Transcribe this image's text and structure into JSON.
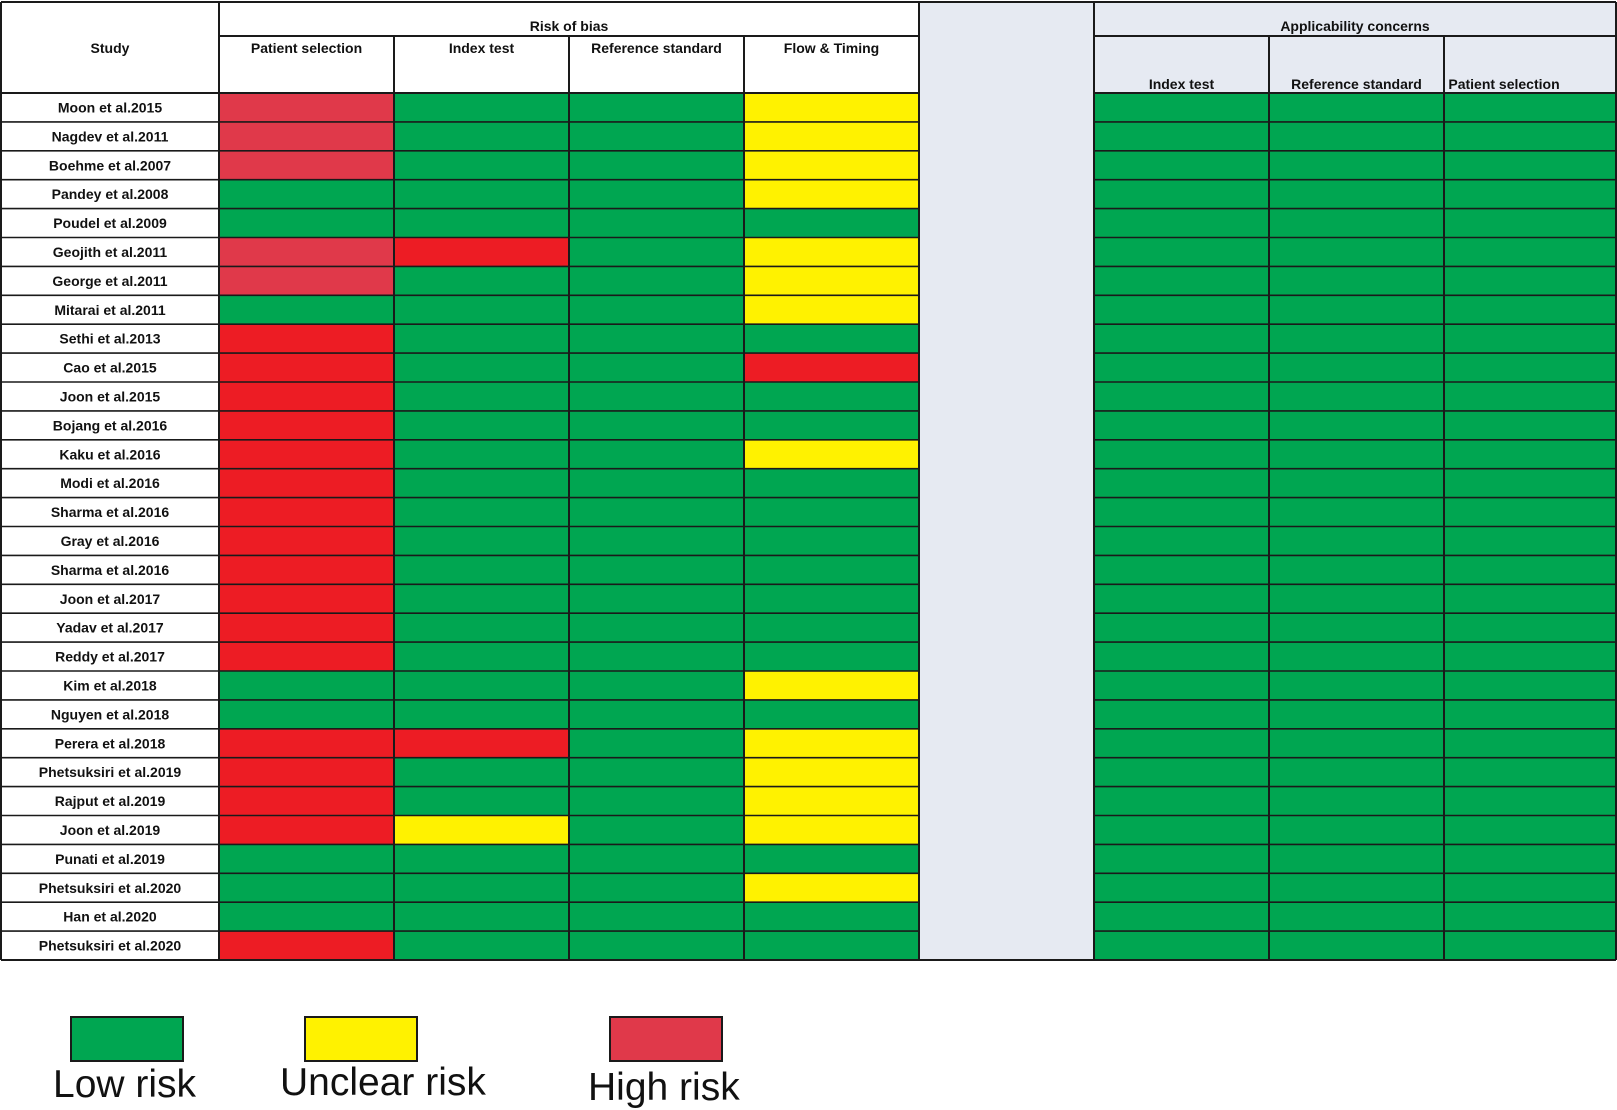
{
  "chart_data": {
    "type": "heatmap",
    "table": {
      "study_header": "Study",
      "risk_of_bias": {
        "title": "Risk of bias",
        "columns": [
          "Patient selection",
          "Index test",
          "Reference standard",
          "Flow & Timing"
        ]
      },
      "applicability": {
        "title": "Applicability concerns",
        "columns": [
          "Index test",
          "Reference standard",
          "Patient selection"
        ]
      }
    },
    "categories": {
      "low": {
        "label": "Low risk",
        "color": "#00A651"
      },
      "unclear": {
        "label": "Unclear risk",
        "color": "#FFF200"
      },
      "high": {
        "label": "High risk",
        "color": "#ED1C24"
      },
      "high_light": {
        "color": "#E0394A"
      }
    },
    "legend": [
      {
        "key": "low",
        "label": "Low risk"
      },
      {
        "key": "unclear",
        "label": "Unclear risk"
      },
      {
        "key": "high",
        "label": "High risk"
      }
    ],
    "colors": {
      "separator": "#E6EAF2",
      "border": "#1a1a1a"
    },
    "rows": [
      {
        "study": "Moon et al.2015",
        "rob": [
          "high_light",
          "low",
          "low",
          "unclear"
        ],
        "app": [
          "low",
          "low",
          "low"
        ]
      },
      {
        "study": "Nagdev et al.2011",
        "rob": [
          "high_light",
          "low",
          "low",
          "unclear"
        ],
        "app": [
          "low",
          "low",
          "low"
        ]
      },
      {
        "study": "Boehme et al.2007",
        "rob": [
          "high_light",
          "low",
          "low",
          "unclear"
        ],
        "app": [
          "low",
          "low",
          "low"
        ]
      },
      {
        "study": "Pandey et al.2008",
        "rob": [
          "low",
          "low",
          "low",
          "unclear"
        ],
        "app": [
          "low",
          "low",
          "low"
        ]
      },
      {
        "study": "Poudel et al.2009",
        "rob": [
          "low",
          "low",
          "low",
          "low"
        ],
        "app": [
          "low",
          "low",
          "low"
        ]
      },
      {
        "study": "Geojith et al.2011",
        "rob": [
          "high_light",
          "high",
          "low",
          "unclear"
        ],
        "app": [
          "low",
          "low",
          "low"
        ]
      },
      {
        "study": "George et al.2011",
        "rob": [
          "high_light",
          "low",
          "low",
          "unclear"
        ],
        "app": [
          "low",
          "low",
          "low"
        ]
      },
      {
        "study": "Mitarai et al.2011",
        "rob": [
          "low",
          "low",
          "low",
          "unclear"
        ],
        "app": [
          "low",
          "low",
          "low"
        ]
      },
      {
        "study": "Sethi et al.2013",
        "rob": [
          "high",
          "low",
          "low",
          "low"
        ],
        "app": [
          "low",
          "low",
          "low"
        ]
      },
      {
        "study": "Cao et al.2015",
        "rob": [
          "high",
          "low",
          "low",
          "high"
        ],
        "app": [
          "low",
          "low",
          "low"
        ]
      },
      {
        "study": "Joon et al.2015",
        "rob": [
          "high",
          "low",
          "low",
          "low"
        ],
        "app": [
          "low",
          "low",
          "low"
        ]
      },
      {
        "study": "Bojang et al.2016",
        "rob": [
          "high",
          "low",
          "low",
          "low"
        ],
        "app": [
          "low",
          "low",
          "low"
        ]
      },
      {
        "study": "Kaku et al.2016",
        "rob": [
          "high",
          "low",
          "low",
          "unclear"
        ],
        "app": [
          "low",
          "low",
          "low"
        ]
      },
      {
        "study": "Modi et al.2016",
        "rob": [
          "high",
          "low",
          "low",
          "low"
        ],
        "app": [
          "low",
          "low",
          "low"
        ]
      },
      {
        "study": "Sharma et al.2016",
        "rob": [
          "high",
          "low",
          "low",
          "low"
        ],
        "app": [
          "low",
          "low",
          "low"
        ]
      },
      {
        "study": "Gray et al.2016",
        "rob": [
          "high",
          "low",
          "low",
          "low"
        ],
        "app": [
          "low",
          "low",
          "low"
        ]
      },
      {
        "study": "Sharma et al.2016",
        "rob": [
          "high",
          "low",
          "low",
          "low"
        ],
        "app": [
          "low",
          "low",
          "low"
        ]
      },
      {
        "study": "Joon et al.2017",
        "rob": [
          "high",
          "low",
          "low",
          "low"
        ],
        "app": [
          "low",
          "low",
          "low"
        ]
      },
      {
        "study": "Yadav et al.2017",
        "rob": [
          "high",
          "low",
          "low",
          "low"
        ],
        "app": [
          "low",
          "low",
          "low"
        ]
      },
      {
        "study": "Reddy et al.2017",
        "rob": [
          "high",
          "low",
          "low",
          "low"
        ],
        "app": [
          "low",
          "low",
          "low"
        ]
      },
      {
        "study": "Kim et al.2018",
        "rob": [
          "low",
          "low",
          "low",
          "unclear"
        ],
        "app": [
          "low",
          "low",
          "low"
        ]
      },
      {
        "study": "Nguyen et al.2018",
        "rob": [
          "low",
          "low",
          "low",
          "low"
        ],
        "app": [
          "low",
          "low",
          "low"
        ]
      },
      {
        "study": "Perera et al.2018",
        "rob": [
          "high",
          "high",
          "low",
          "unclear"
        ],
        "app": [
          "low",
          "low",
          "low"
        ]
      },
      {
        "study": "Phetsuksiri et al.2019",
        "rob": [
          "high",
          "low",
          "low",
          "unclear"
        ],
        "app": [
          "low",
          "low",
          "low"
        ]
      },
      {
        "study": "Rajput et al.2019",
        "rob": [
          "high",
          "low",
          "low",
          "unclear"
        ],
        "app": [
          "low",
          "low",
          "low"
        ]
      },
      {
        "study": "Joon et al.2019",
        "rob": [
          "high",
          "unclear",
          "low",
          "unclear"
        ],
        "app": [
          "low",
          "low",
          "low"
        ]
      },
      {
        "study": "Punati et al.2019",
        "rob": [
          "low",
          "low",
          "low",
          "low"
        ],
        "app": [
          "low",
          "low",
          "low"
        ]
      },
      {
        "study": "Phetsuksiri et al.2020",
        "rob": [
          "low",
          "low",
          "low",
          "unclear"
        ],
        "app": [
          "low",
          "low",
          "low"
        ]
      },
      {
        "study": "Han et al.2020",
        "rob": [
          "low",
          "low",
          "low",
          "low"
        ],
        "app": [
          "low",
          "low",
          "low"
        ]
      },
      {
        "study": "Phetsuksiri et al.2020",
        "rob": [
          "high",
          "low",
          "low",
          "low"
        ],
        "app": [
          "low",
          "low",
          "low"
        ]
      }
    ]
  }
}
